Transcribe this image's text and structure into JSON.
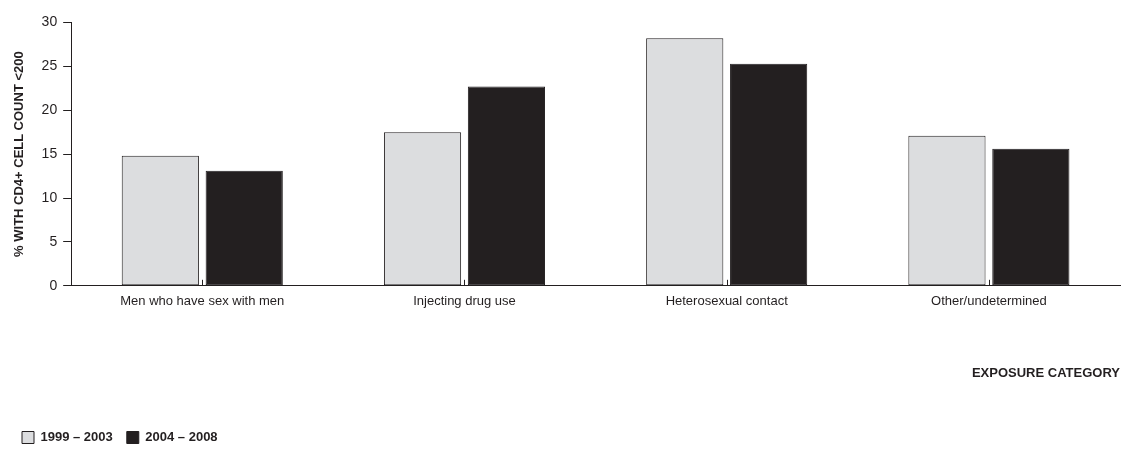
{
  "chart_data": {
    "type": "bar",
    "ylabel": "% WITH CD4+ CELL COUNT <200",
    "xlabel": "EXPOSURE CATEGORY",
    "categories": [
      "Men who have sex with men",
      "Injecting drug use",
      "Heterosexual contact",
      "Other/undetermined"
    ],
    "series": [
      {
        "name": "1999 – 2003",
        "color": "#dcdddf",
        "values": [
          14.8,
          17.5,
          28.2,
          17.1
        ]
      },
      {
        "name": "2004 – 2008",
        "color": "#231f20",
        "values": [
          13.1,
          22.7,
          25.3,
          15.6
        ]
      }
    ],
    "ylim": [
      0,
      30
    ],
    "yticks": [
      0,
      5,
      10,
      15,
      20,
      25,
      30
    ],
    "grid": false,
    "legend": "bottom left"
  }
}
